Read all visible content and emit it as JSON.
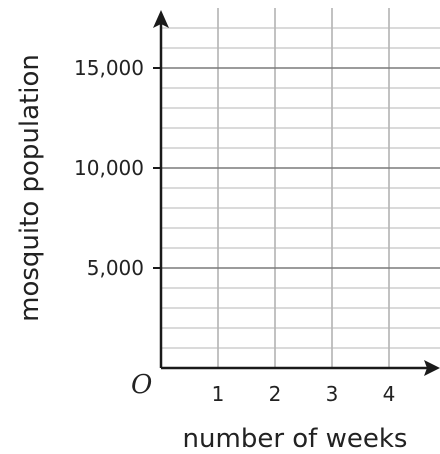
{
  "chart_data": {
    "type": "scatter",
    "title": "",
    "xlabel": "number of weeks",
    "ylabel": "mosquito population",
    "origin_label": "O",
    "x_tick_labels": [
      "1",
      "2",
      "3",
      "4"
    ],
    "x_ticks": [
      1,
      2,
      3,
      4
    ],
    "y_tick_labels": [
      "5,000",
      "10,000",
      "15,000"
    ],
    "y_ticks": [
      5000,
      10000,
      15000
    ],
    "xlim": [
      0,
      4.75
    ],
    "ylim": [
      0,
      17500
    ],
    "minor_grid_y_step": 1000,
    "grid": true,
    "series": []
  }
}
